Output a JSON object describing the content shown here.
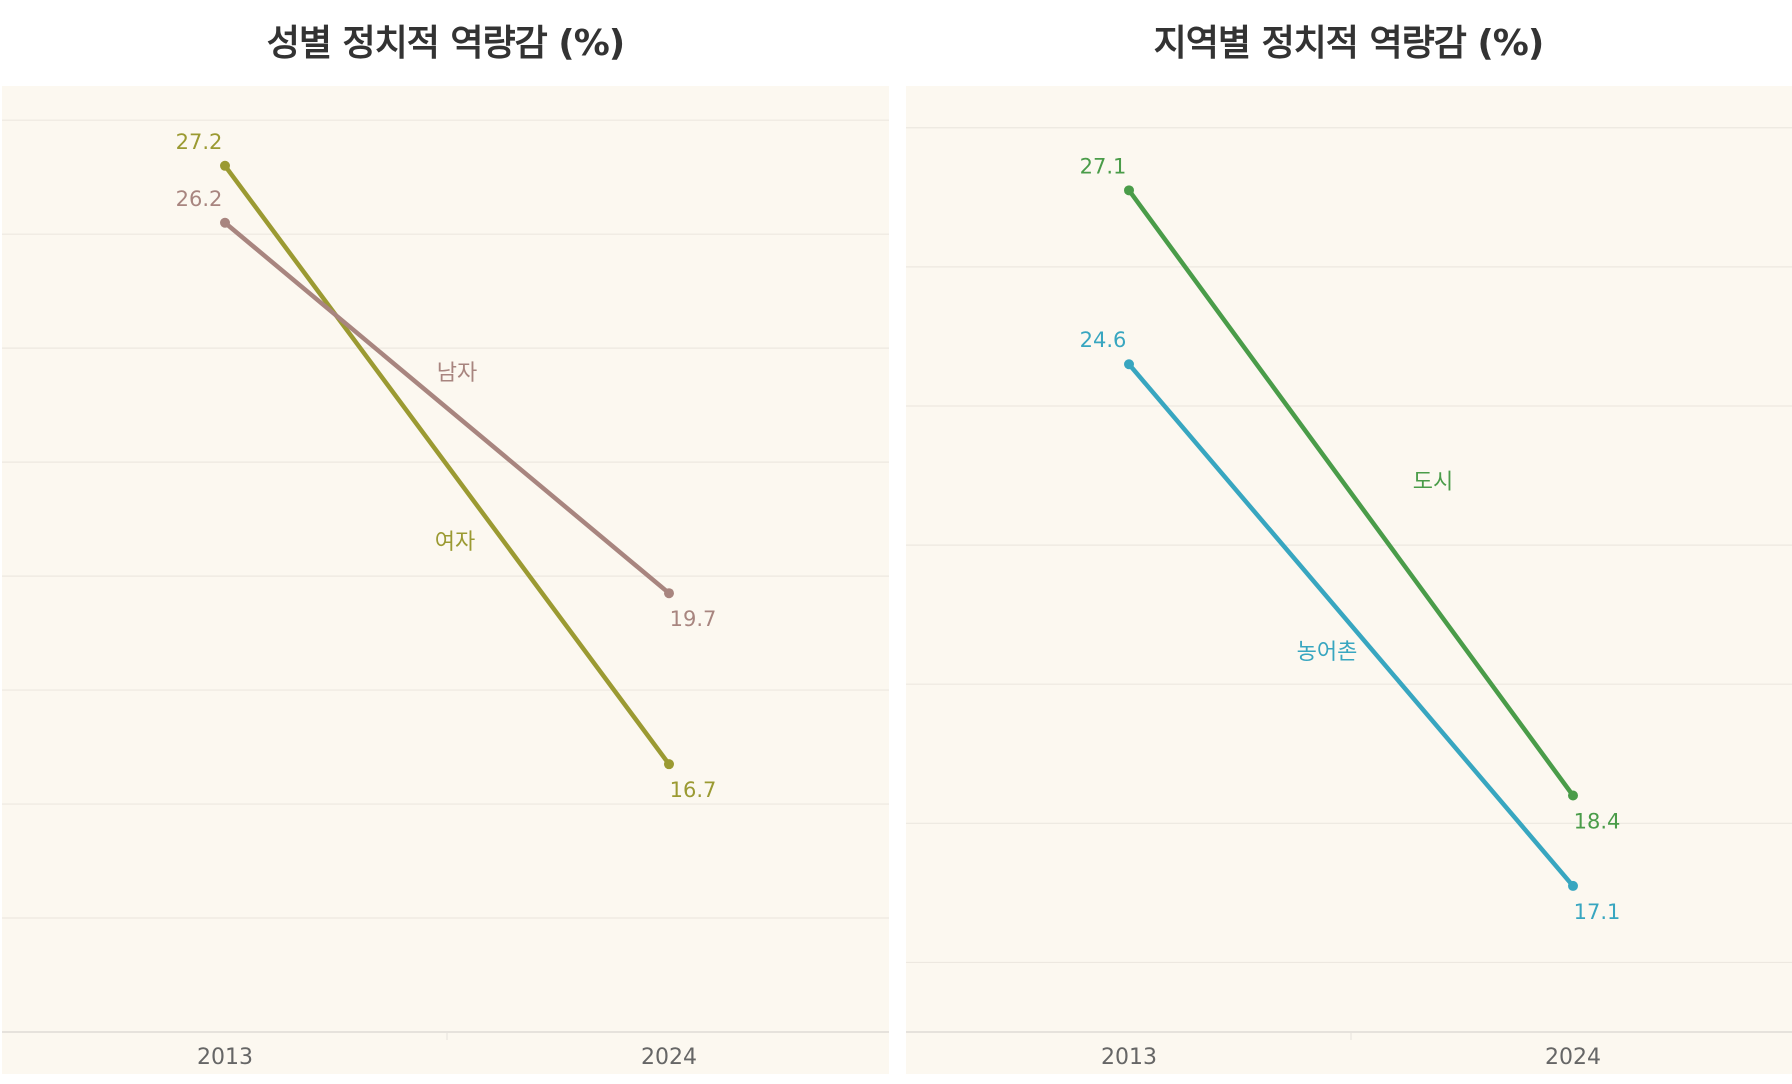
{
  "chart_data": [
    {
      "type": "line",
      "title": "성별 정치적 역량감 (%)",
      "categories": [
        "2013",
        "2024"
      ],
      "ylim": [
        12,
        28.6
      ],
      "grid": true,
      "gridlines": [
        12,
        14,
        16,
        18,
        20,
        22,
        24,
        26,
        28
      ],
      "background": "#fcf8f0",
      "series": [
        {
          "name": "여자",
          "values": [
            27.2,
            16.7
          ],
          "labels": [
            "27.2",
            "16.7"
          ],
          "color": "#9b9a32"
        },
        {
          "name": "남자",
          "values": [
            26.2,
            19.7
          ],
          "labels": [
            "26.2",
            "19.7"
          ],
          "color": "#a8857f"
        }
      ]
    },
    {
      "type": "line",
      "title": "지역별 정치적 역량감 (%)",
      "categories": [
        "2013",
        "2024"
      ],
      "ylim": [
        15,
        28.6
      ],
      "grid": true,
      "gridlines": [
        16,
        18,
        20,
        22,
        24,
        26,
        28
      ],
      "background": "#fcf8f0",
      "series": [
        {
          "name": "도시",
          "values": [
            27.1,
            18.4
          ],
          "labels": [
            "27.1",
            "18.4"
          ],
          "color": "#4a9c49"
        },
        {
          "name": "농어촌",
          "values": [
            24.6,
            17.1
          ],
          "labels": [
            "24.6",
            "17.1"
          ],
          "color": "#38a6c0"
        }
      ]
    }
  ]
}
